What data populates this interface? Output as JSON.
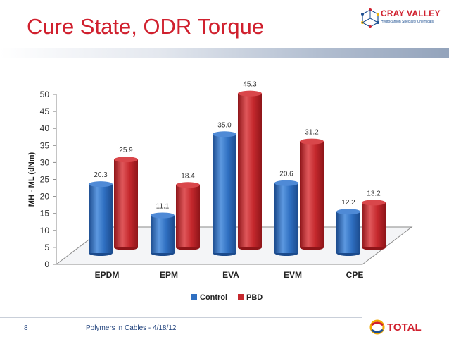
{
  "slide": {
    "title": "Cure State, ODR Torque",
    "logo_brand": "CRAY VALLEY",
    "logo_sub": "Hydrocarbon Specialty Chemicals",
    "footer_page": "8",
    "footer_text": "Polymers in Cables - 4/18/12",
    "footer_logo": "TOTAL"
  },
  "colors": {
    "title": "#d0202e",
    "control": "#2f6fc1",
    "pbd": "#c5282d"
  },
  "chart_data": {
    "type": "bar",
    "title": "",
    "xlabel": "",
    "ylabel": "MH - ML (dNm)",
    "ylim": [
      0,
      50
    ],
    "yticks": [
      0,
      5,
      10,
      15,
      20,
      25,
      30,
      35,
      40,
      45,
      50
    ],
    "categories": [
      "EPDM",
      "EPM",
      "EVA",
      "EVM",
      "CPE"
    ],
    "series": [
      {
        "name": "Control",
        "values": [
          20.3,
          11.1,
          35.0,
          20.6,
          12.2
        ]
      },
      {
        "name": "PBD",
        "values": [
          25.9,
          18.4,
          45.3,
          31.2,
          13.2
        ]
      }
    ],
    "data_labels": [
      [
        "20.3",
        "11.1",
        "35.0",
        "20.6",
        "12.2"
      ],
      [
        "25.9",
        "18.4",
        "45.3",
        "31.2",
        "13.2"
      ]
    ],
    "legend": "bottom",
    "grid": false,
    "style": "3d-cylinder"
  }
}
